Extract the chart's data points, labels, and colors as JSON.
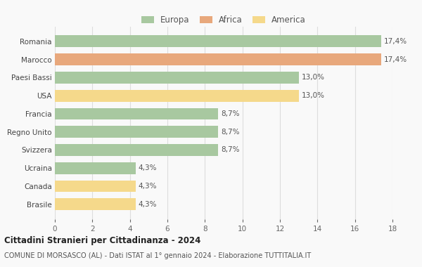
{
  "categories": [
    "Brasile",
    "Canada",
    "Ucraina",
    "Svizzera",
    "Regno Unito",
    "Francia",
    "USA",
    "Paesi Bassi",
    "Marocco",
    "Romania"
  ],
  "values": [
    4.3,
    4.3,
    4.3,
    8.7,
    8.7,
    8.7,
    13.0,
    13.0,
    17.4,
    17.4
  ],
  "labels": [
    "4,3%",
    "4,3%",
    "4,3%",
    "8,7%",
    "8,7%",
    "8,7%",
    "13,0%",
    "13,0%",
    "17,4%",
    "17,4%"
  ],
  "colors": [
    "#f5d98b",
    "#f5d98b",
    "#a8c8a0",
    "#a8c8a0",
    "#a8c8a0",
    "#a8c8a0",
    "#f5d98b",
    "#a8c8a0",
    "#e8a87c",
    "#a8c8a0"
  ],
  "legend_labels": [
    "Europa",
    "Africa",
    "America"
  ],
  "legend_colors": [
    "#a8c8a0",
    "#e8a87c",
    "#f5d98b"
  ],
  "title_bold": "Cittadini Stranieri per Cittadinanza - 2024",
  "subtitle": "COMUNE DI MORSASCO (AL) - Dati ISTAT al 1° gennaio 2024 - Elaborazione TUTTITALIA.IT",
  "xlim": [
    0,
    18
  ],
  "xticks": [
    0,
    2,
    4,
    6,
    8,
    10,
    12,
    14,
    16,
    18
  ],
  "background_color": "#f9f9f9",
  "grid_color": "#dddddd"
}
